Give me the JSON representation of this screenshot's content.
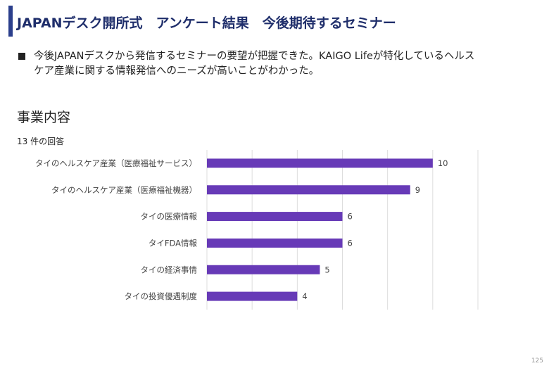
{
  "header": {
    "title": "JAPANデスク開所式　アンケート結果　今後期待するセミナー"
  },
  "summary": {
    "line1": "今後JAPANデスクから発信するセミナーの要望が把握できた。KAIGO Lifeが特化しているヘルス",
    "line2": "ケア産業に関する情報発信へのニーズが高いことがわかった。"
  },
  "section": {
    "heading": "事業内容",
    "response_count": "13 件の回答"
  },
  "chart_data": {
    "type": "bar",
    "orientation": "horizontal",
    "categories": [
      "タイのヘルスケア産業（医療福祉サービス）",
      "タイのヘルスケア産業（医療福祉機器）",
      "タイの医療情報",
      "タイFDA情報",
      "タイの経済事情",
      "タイの投資優遇制度"
    ],
    "values": [
      10,
      9,
      6,
      6,
      5,
      4
    ],
    "xlim": [
      0,
      12
    ],
    "grid": true,
    "bar_color": "#673ab7"
  },
  "footer": {
    "page_number": "125"
  }
}
